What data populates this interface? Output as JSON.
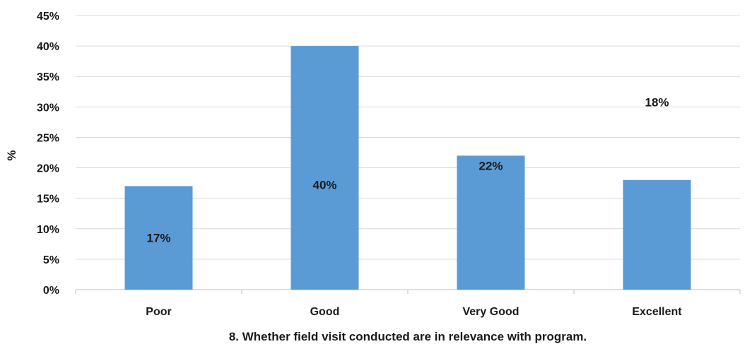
{
  "chart_data": {
    "type": "bar",
    "categories": [
      "Poor",
      "Good",
      "Very Good",
      "Excellent"
    ],
    "values": [
      17,
      40,
      22,
      18
    ],
    "data_labels": [
      "17%",
      "40%",
      "22%",
      "18%"
    ],
    "ylim": [
      0,
      45
    ],
    "yticks": [
      0,
      5,
      10,
      15,
      20,
      25,
      30,
      35,
      40,
      45
    ],
    "ytick_labels": [
      "0%",
      "5%",
      "10%",
      "15%",
      "20%",
      "25%",
      "30%",
      "35%",
      "40%",
      "45%"
    ],
    "ylabel": "%",
    "xlabel": "8. Whether field visit conducted are in relevance with program.",
    "grid": true,
    "bar_color": "#5b9bd5"
  }
}
